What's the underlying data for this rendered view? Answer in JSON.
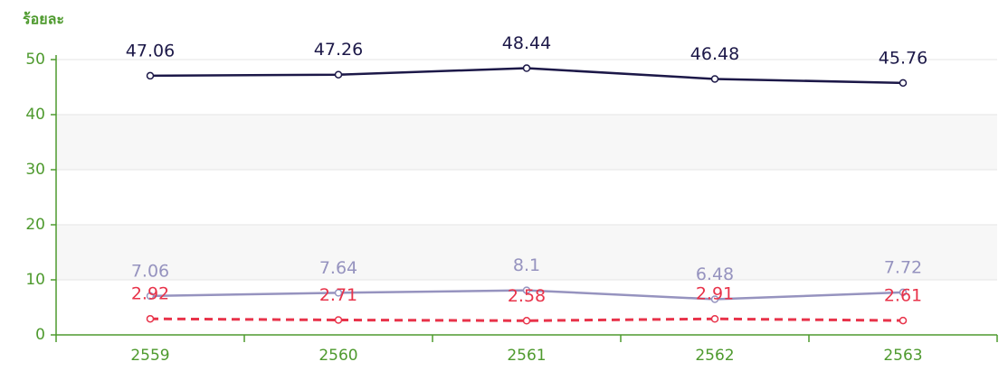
{
  "chart_data": {
    "type": "line",
    "y_label": "ร้อยละ",
    "categories": [
      "2559",
      "2560",
      "2561",
      "2562",
      "2563"
    ],
    "series": [
      {
        "color": "#1c1848",
        "dashed": false,
        "values": [
          47.06,
          47.26,
          48.44,
          46.48,
          45.76
        ]
      },
      {
        "color": "#9693bf",
        "dashed": false,
        "values": [
          7.06,
          7.64,
          8.1,
          6.48,
          7.72
        ]
      },
      {
        "color": "#e8334a",
        "dashed": true,
        "values": [
          2.92,
          2.71,
          2.58,
          2.91,
          2.61
        ]
      }
    ],
    "ylim": [
      0,
      50
    ],
    "yticks": [
      0,
      10,
      20,
      30,
      40,
      50
    ],
    "grid": true,
    "axis_color": "#4e9a2e"
  }
}
